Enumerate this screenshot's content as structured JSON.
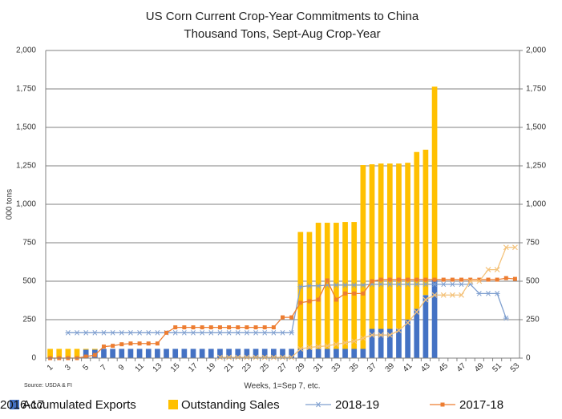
{
  "chart_data": {
    "type": "bar",
    "title": "US Corn Current Crop-Year Commitments to China",
    "subtitle": "Thousand Tons, Sept-Aug Crop-Year",
    "y_label": "000 tons",
    "x_label": "Weeks, 1=Sep 7, etc.",
    "source": "Source: USDA & FI",
    "categories": [
      1,
      null,
      3,
      null,
      5,
      null,
      7,
      null,
      9,
      null,
      11,
      null,
      13,
      null,
      15,
      null,
      17,
      null,
      19,
      null,
      21,
      null,
      23,
      null,
      25,
      null,
      27,
      null,
      29,
      null,
      31,
      null,
      33,
      null,
      35,
      null,
      37,
      null,
      39,
      null,
      41,
      null,
      43,
      null,
      45,
      null,
      47,
      null,
      49,
      null,
      51,
      null,
      53
    ],
    "ylim": [
      0,
      2000
    ],
    "yticks": [
      0,
      {
        "value": 250,
        "label": "250"
      },
      {
        "value": 500,
        "label": "500"
      },
      {
        "value": 750,
        "label": "750"
      },
      {
        "value": 1000,
        "label": "1,000"
      },
      {
        "value": 1250,
        "label": "1,250"
      },
      {
        "value": 1500,
        "label": "1,500"
      },
      {
        "value": 1750,
        "label": "1,750"
      },
      {
        "value": 2000,
        "label": "2,000"
      }
    ],
    "y2lim": [
      0,
      2000
    ],
    "y2ticks": [
      0,
      {
        "value": 250,
        "label": "250"
      },
      {
        "value": 500,
        "label": "500"
      },
      {
        "value": 750,
        "label": "750"
      },
      {
        "value": 1000,
        "label": "1,000"
      },
      {
        "value": 1250,
        "label": "1,250"
      },
      {
        "value": 1500,
        "label": "1,500"
      },
      {
        "value": 1750,
        "label": "1,750"
      },
      {
        "value": 2000,
        "label": "2,000"
      }
    ],
    "grid": true,
    "legend": "bottom",
    "series": [
      {
        "name": "Accumulated Exports",
        "type": "bar",
        "stacked": true,
        "color": "#4472c4",
        "values": [
          0,
          0,
          0,
          0,
          55,
          55,
          60,
          60,
          60,
          60,
          60,
          60,
          60,
          60,
          60,
          60,
          60,
          60,
          60,
          60,
          60,
          60,
          60,
          60,
          60,
          60,
          60,
          60,
          60,
          60,
          60,
          60,
          60,
          60,
          60,
          60,
          190,
          190,
          190,
          190,
          250,
          320,
          410,
          510,
          null,
          null,
          null,
          null,
          null,
          null,
          null,
          null,
          null
        ]
      },
      {
        "name": "Outstanding Sales",
        "type": "bar",
        "stacked": true,
        "color": "#ffc000",
        "values": [
          60,
          60,
          60,
          60,
          5,
          5,
          0,
          0,
          0,
          0,
          0,
          0,
          0,
          0,
          0,
          0,
          0,
          0,
          0,
          0,
          0,
          0,
          0,
          0,
          0,
          0,
          0,
          0,
          760,
          760,
          820,
          820,
          820,
          825,
          825,
          1195,
          1070,
          1075,
          1075,
          1075,
          1020,
          1020,
          945,
          1255,
          null,
          null,
          null,
          null,
          null,
          null,
          null,
          null,
          null
        ]
      },
      {
        "name": "2018-19",
        "type": "line",
        "axis": "y2",
        "marker": "star",
        "color": "#7f9fcf",
        "values": [
          null,
          null,
          165,
          165,
          165,
          165,
          165,
          165,
          165,
          165,
          165,
          165,
          165,
          165,
          165,
          165,
          165,
          165,
          165,
          165,
          165,
          165,
          165,
          165,
          165,
          165,
          165,
          165,
          465,
          470,
          470,
          475,
          475,
          475,
          475,
          475,
          480,
          480,
          480,
          480,
          480,
          480,
          480,
          480,
          480,
          480,
          480,
          480,
          420,
          420,
          420,
          260,
          null
        ]
      },
      {
        "name": "2017-18",
        "type": "line",
        "axis": "y2",
        "marker": "square",
        "color": "#ed7d31",
        "values": [
          0,
          0,
          0,
          0,
          10,
          20,
          75,
          80,
          90,
          95,
          95,
          95,
          95,
          165,
          200,
          200,
          200,
          200,
          200,
          200,
          200,
          200,
          200,
          200,
          200,
          200,
          265,
          265,
          360,
          370,
          380,
          505,
          380,
          420,
          420,
          420,
          500,
          510,
          510,
          510,
          510,
          510,
          510,
          510,
          510,
          510,
          510,
          510,
          510,
          510,
          510,
          520,
          515
        ]
      },
      {
        "name": "2016-17",
        "type": "line",
        "axis": "y2",
        "marker": "x",
        "color": "#f4c27a",
        "values": [
          null,
          null,
          null,
          null,
          null,
          null,
          null,
          null,
          null,
          null,
          null,
          null,
          null,
          null,
          null,
          null,
          null,
          null,
          null,
          5,
          5,
          5,
          5,
          5,
          5,
          5,
          5,
          5,
          60,
          70,
          75,
          80,
          90,
          100,
          110,
          130,
          150,
          150,
          150,
          180,
          230,
          300,
          380,
          410,
          410,
          410,
          410,
          500,
          500,
          575,
          575,
          720,
          720
        ]
      }
    ]
  }
}
